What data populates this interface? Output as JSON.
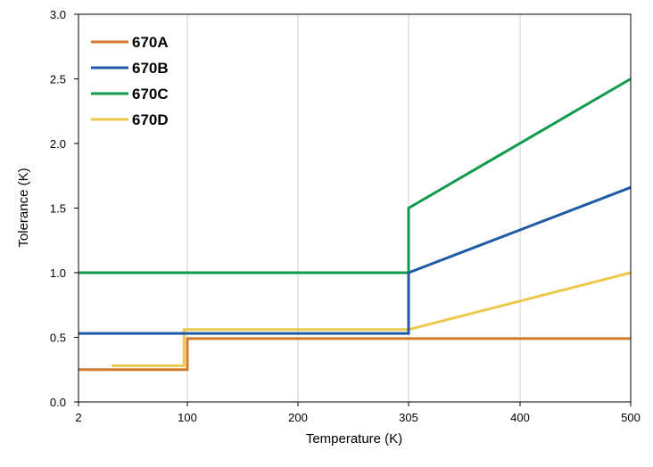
{
  "chart_data": {
    "type": "line",
    "xlabel": "Temperature (K)",
    "ylabel": "Tolerance (K)",
    "x_axis": {
      "ticks": [
        2,
        100,
        200,
        305,
        400,
        500
      ],
      "tick_labels": [
        "2",
        "100",
        "200",
        "305",
        "400",
        "500"
      ],
      "range": [
        2,
        500
      ]
    },
    "y_axis": {
      "ticks": [
        0.0,
        0.5,
        1.0,
        1.5,
        2.0,
        2.5,
        3.0
      ],
      "tick_labels": [
        "0.0",
        "0.5",
        "1.0",
        "1.5",
        "2.0",
        "2.5",
        "3.0"
      ],
      "range": [
        0,
        3.0
      ]
    },
    "grid": "vertical",
    "legend_position": "top-left",
    "series": [
      {
        "name": "670A",
        "color": "#d4782a",
        "points": [
          [
            2,
            0.25
          ],
          [
            100,
            0.25
          ],
          [
            100,
            0.49
          ],
          [
            500,
            0.49
          ]
        ]
      },
      {
        "name": "670B",
        "color": "#1f5aa6",
        "points": [
          [
            2,
            0.53
          ],
          [
            305,
            0.53
          ],
          [
            305,
            1.0
          ],
          [
            500,
            1.66
          ]
        ]
      },
      {
        "name": "670C",
        "color": "#0f9a4c",
        "points": [
          [
            2,
            1.0
          ],
          [
            305,
            1.0
          ],
          [
            305,
            1.5
          ],
          [
            500,
            2.5
          ]
        ]
      },
      {
        "name": "670D",
        "color": "#ecc94b",
        "points": [
          [
            32,
            0.28
          ],
          [
            97,
            0.28
          ],
          [
            97,
            0.56
          ],
          [
            305,
            0.56
          ],
          [
            500,
            1.0
          ]
        ]
      }
    ]
  }
}
